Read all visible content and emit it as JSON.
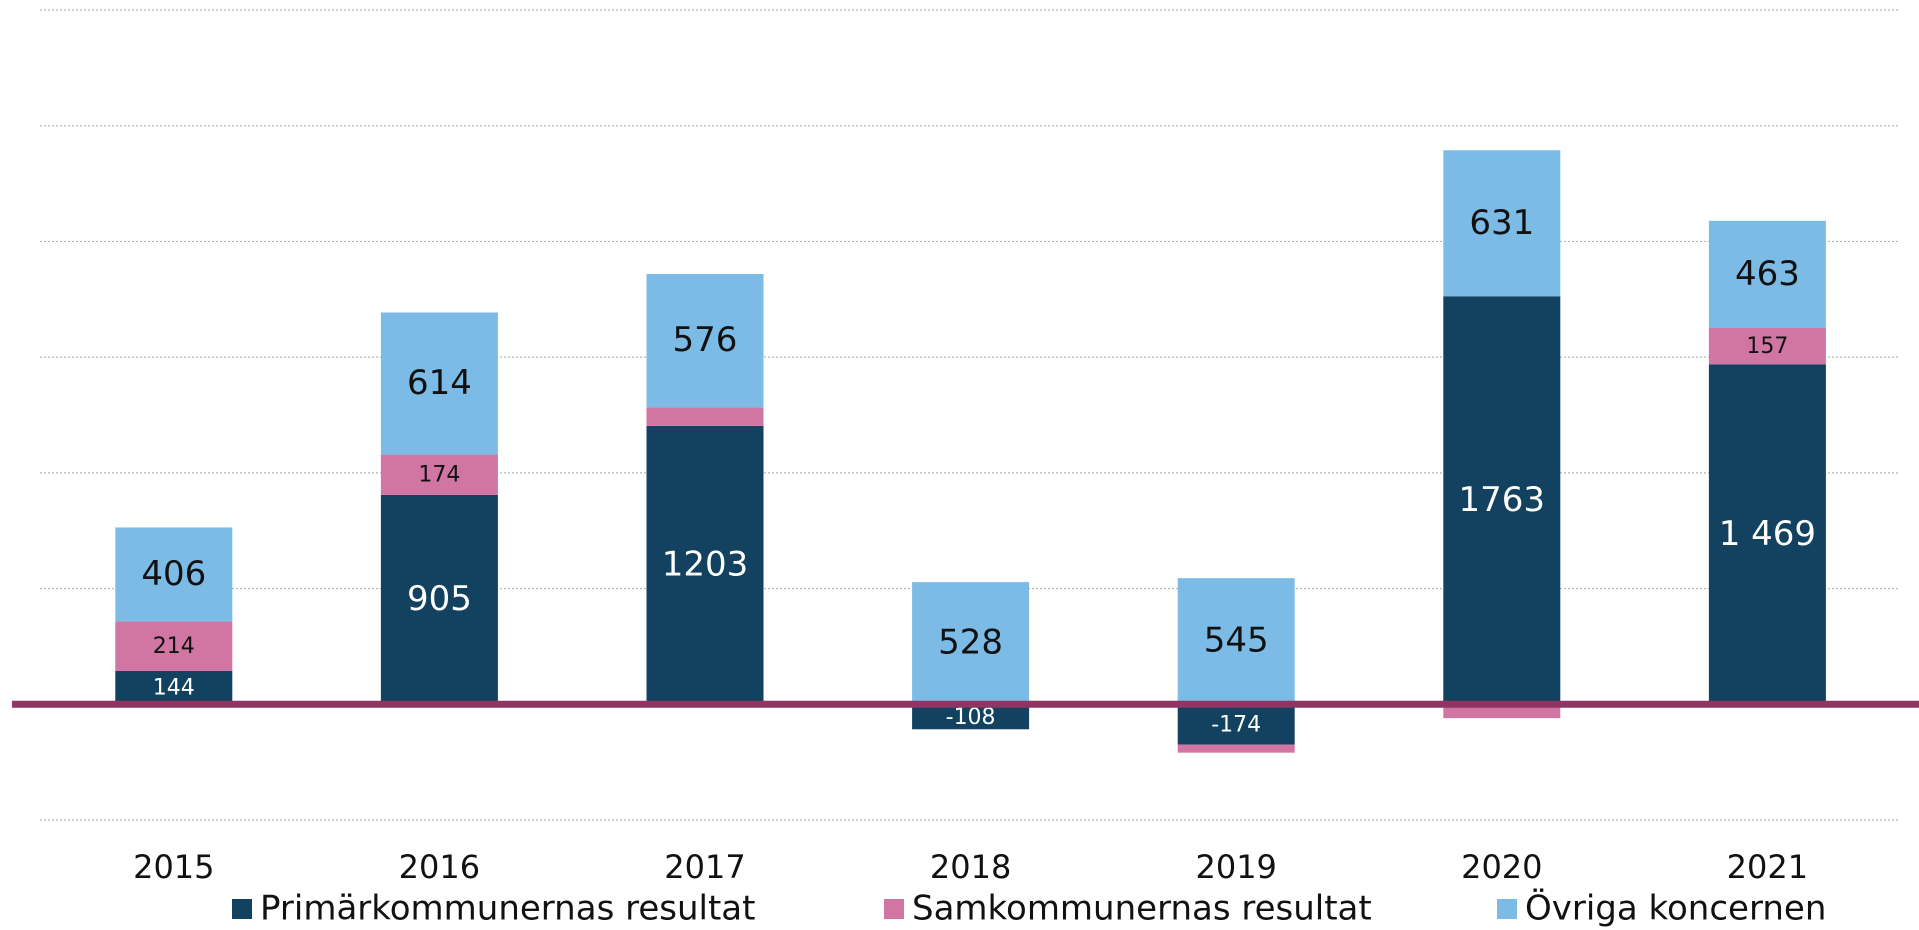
{
  "chart_data": {
    "type": "stacked_bar",
    "categories": [
      "2015",
      "2016",
      "2017",
      "2018",
      "2019",
      "2020",
      "2021"
    ],
    "series": [
      {
        "name": "Primärkommunernas resultat",
        "color": "#12425f",
        "values": [
          144,
          905,
          1203,
          -108,
          -174,
          1763,
          1469
        ],
        "value_labels": [
          "144",
          "905",
          "1203",
          "-108",
          "-174",
          "1763",
          "1 469"
        ]
      },
      {
        "name": "Samkommunernas resultat",
        "color": "#d175a3",
        "values": [
          214,
          174,
          80,
          0,
          -35,
          -60,
          157
        ],
        "value_labels": [
          "214",
          "174",
          null,
          null,
          null,
          null,
          "157"
        ]
      },
      {
        "name": "Övriga koncernen",
        "color": "#7bbbe6",
        "values": [
          406,
          614,
          576,
          528,
          545,
          631,
          463
        ],
        "value_labels": [
          "406",
          "614",
          "576",
          "528",
          "545",
          "631",
          "463"
        ]
      }
    ],
    "ylim": [
      -500,
      3000
    ],
    "yticks": [
      -500,
      0,
      500,
      1000,
      1500,
      2000,
      2500,
      3000
    ],
    "grid": true,
    "zero_line_color": "#8e3563"
  }
}
